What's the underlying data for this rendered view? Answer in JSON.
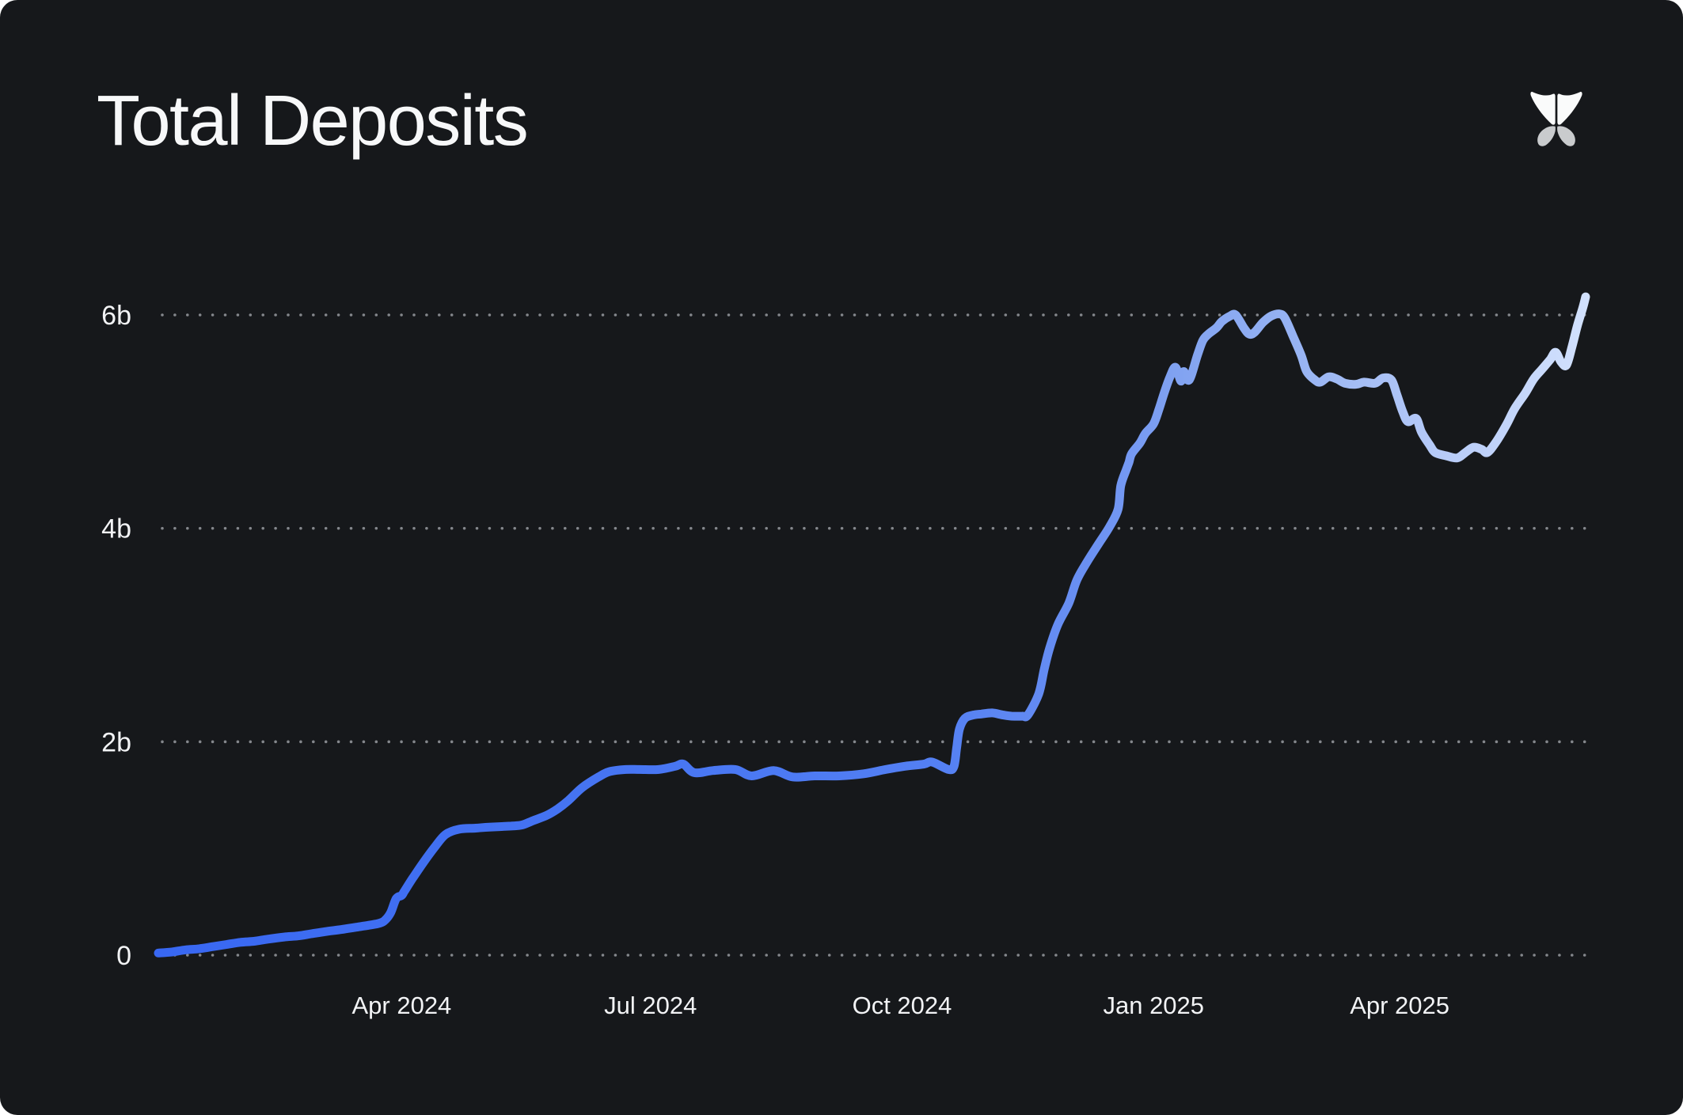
{
  "header": {
    "title": "Total Deposits",
    "logo_icon": "butterfly-logo"
  },
  "chart_data": {
    "type": "line",
    "title": "Total Deposits",
    "value_unit": "billions",
    "legend": "none",
    "grid": "horizontal-dotted",
    "x_axis": {
      "ticks": [
        {
          "date": "2024-04-01",
          "label": "Apr 2024"
        },
        {
          "date": "2024-07-01",
          "label": "Jul 2024"
        },
        {
          "date": "2024-10-01",
          "label": "Oct 2024"
        },
        {
          "date": "2025-01-01",
          "label": "Jan 2025"
        },
        {
          "date": "2025-04-01",
          "label": "Apr 2025"
        }
      ]
    },
    "y_axis": {
      "range": [
        0,
        6.5
      ],
      "ticks": [
        {
          "value": 0,
          "label": "0"
        },
        {
          "value": 2,
          "label": "2b"
        },
        {
          "value": 4,
          "label": "4b"
        },
        {
          "value": 6,
          "label": "6b"
        }
      ]
    },
    "colors": {
      "background": "#16181b",
      "text": "#f2f3f5",
      "grid_dots": "#84878c",
      "logo_upper_wings": "#fafbfb",
      "logo_lower_wings": "#c9cbcd",
      "line_gradient": [
        [
          "0%",
          "#3867f2"
        ],
        [
          "20%",
          "#4170f2"
        ],
        [
          "40%",
          "#4a78f3"
        ],
        [
          "55%",
          "#5480f3"
        ],
        [
          "65%",
          "#6a90f2"
        ],
        [
          "72%",
          "#83a4f1"
        ],
        [
          "80%",
          "#98b4f3"
        ],
        [
          "90%",
          "#b7cbf8"
        ],
        [
          "100%",
          "#d2e1fd"
        ]
      ]
    },
    "series": [
      {
        "name": "Total Deposits",
        "points": [
          [
            "2024-01-03",
            0.02
          ],
          [
            "2024-01-08",
            0.03
          ],
          [
            "2024-01-13",
            0.05
          ],
          [
            "2024-01-18",
            0.06
          ],
          [
            "2024-01-23",
            0.08
          ],
          [
            "2024-01-28",
            0.1
          ],
          [
            "2024-02-02",
            0.12
          ],
          [
            "2024-02-07",
            0.13
          ],
          [
            "2024-02-12",
            0.15
          ],
          [
            "2024-02-18",
            0.17
          ],
          [
            "2024-02-23",
            0.18
          ],
          [
            "2024-02-28",
            0.2
          ],
          [
            "2024-03-04",
            0.22
          ],
          [
            "2024-03-10",
            0.24
          ],
          [
            "2024-03-15",
            0.26
          ],
          [
            "2024-03-20",
            0.28
          ],
          [
            "2024-03-24",
            0.3
          ],
          [
            "2024-03-26",
            0.33
          ],
          [
            "2024-03-28",
            0.4
          ],
          [
            "2024-03-30",
            0.53
          ],
          [
            "2024-04-01",
            0.56
          ],
          [
            "2024-04-02",
            0.6
          ],
          [
            "2024-04-05",
            0.72
          ],
          [
            "2024-04-09",
            0.87
          ],
          [
            "2024-04-13",
            1.01
          ],
          [
            "2024-04-17",
            1.13
          ],
          [
            "2024-04-22",
            1.18
          ],
          [
            "2024-04-28",
            1.19
          ],
          [
            "2024-05-03",
            1.2
          ],
          [
            "2024-05-11",
            1.21
          ],
          [
            "2024-05-15",
            1.22
          ],
          [
            "2024-05-19",
            1.26
          ],
          [
            "2024-05-24",
            1.31
          ],
          [
            "2024-05-28",
            1.37
          ],
          [
            "2024-06-01",
            1.45
          ],
          [
            "2024-06-06",
            1.57
          ],
          [
            "2024-06-12",
            1.67
          ],
          [
            "2024-06-16",
            1.72
          ],
          [
            "2024-06-22",
            1.74
          ],
          [
            "2024-06-27",
            1.74
          ],
          [
            "2024-07-04",
            1.74
          ],
          [
            "2024-07-10",
            1.77
          ],
          [
            "2024-07-13",
            1.79
          ],
          [
            "2024-07-17",
            1.71
          ],
          [
            "2024-07-24",
            1.73
          ],
          [
            "2024-08-01",
            1.74
          ],
          [
            "2024-08-07",
            1.68
          ],
          [
            "2024-08-15",
            1.73
          ],
          [
            "2024-08-22",
            1.67
          ],
          [
            "2024-08-30",
            1.68
          ],
          [
            "2024-09-08",
            1.68
          ],
          [
            "2024-09-17",
            1.7
          ],
          [
            "2024-09-25",
            1.74
          ],
          [
            "2024-10-02",
            1.77
          ],
          [
            "2024-10-09",
            1.79
          ],
          [
            "2024-10-12",
            1.81
          ],
          [
            "2024-10-18",
            1.74
          ],
          [
            "2024-10-20",
            1.77
          ],
          [
            "2024-10-21",
            1.95
          ],
          [
            "2024-10-22",
            2.12
          ],
          [
            "2024-10-24",
            2.22
          ],
          [
            "2024-10-27",
            2.25
          ],
          [
            "2024-10-30",
            2.26
          ],
          [
            "2024-11-03",
            2.27
          ],
          [
            "2024-11-07",
            2.25
          ],
          [
            "2024-11-10",
            2.24
          ],
          [
            "2024-11-14",
            2.24
          ],
          [
            "2024-11-16",
            2.25
          ],
          [
            "2024-11-20",
            2.45
          ],
          [
            "2024-11-22",
            2.68
          ],
          [
            "2024-11-24",
            2.88
          ],
          [
            "2024-11-27",
            3.1
          ],
          [
            "2024-12-01",
            3.3
          ],
          [
            "2024-12-04",
            3.52
          ],
          [
            "2024-12-08",
            3.7
          ],
          [
            "2024-12-12",
            3.86
          ],
          [
            "2024-12-16",
            4.02
          ],
          [
            "2024-12-19",
            4.18
          ],
          [
            "2024-12-20",
            4.4
          ],
          [
            "2024-12-22",
            4.55
          ],
          [
            "2024-12-23",
            4.62
          ],
          [
            "2024-12-24",
            4.7
          ],
          [
            "2024-12-27",
            4.8
          ],
          [
            "2024-12-29",
            4.89
          ],
          [
            "2025-01-01",
            4.98
          ],
          [
            "2025-01-03",
            5.12
          ],
          [
            "2025-01-05",
            5.28
          ],
          [
            "2025-01-07",
            5.42
          ],
          [
            "2025-01-09",
            5.51
          ],
          [
            "2025-01-11",
            5.38
          ],
          [
            "2025-01-12",
            5.47
          ],
          [
            "2025-01-14",
            5.39
          ],
          [
            "2025-01-17",
            5.62
          ],
          [
            "2025-01-19",
            5.76
          ],
          [
            "2025-01-21",
            5.82
          ],
          [
            "2025-01-24",
            5.88
          ],
          [
            "2025-01-26",
            5.94
          ],
          [
            "2025-01-29",
            5.99
          ],
          [
            "2025-01-31",
            6.0
          ],
          [
            "2025-02-03",
            5.88
          ],
          [
            "2025-02-05",
            5.82
          ],
          [
            "2025-02-07",
            5.84
          ],
          [
            "2025-02-10",
            5.93
          ],
          [
            "2025-02-13",
            5.99
          ],
          [
            "2025-02-16",
            6.01
          ],
          [
            "2025-02-18",
            5.97
          ],
          [
            "2025-02-21",
            5.8
          ],
          [
            "2025-02-24",
            5.62
          ],
          [
            "2025-02-26",
            5.47
          ],
          [
            "2025-03-01",
            5.39
          ],
          [
            "2025-03-03",
            5.37
          ],
          [
            "2025-03-06",
            5.42
          ],
          [
            "2025-03-09",
            5.4
          ],
          [
            "2025-03-12",
            5.36
          ],
          [
            "2025-03-16",
            5.35
          ],
          [
            "2025-03-19",
            5.37
          ],
          [
            "2025-03-23",
            5.36
          ],
          [
            "2025-03-26",
            5.41
          ],
          [
            "2025-03-29",
            5.39
          ],
          [
            "2025-03-31",
            5.25
          ],
          [
            "2025-04-02",
            5.1
          ],
          [
            "2025-04-04",
            5.0
          ],
          [
            "2025-04-07",
            5.03
          ],
          [
            "2025-04-09",
            4.9
          ],
          [
            "2025-04-12",
            4.78
          ],
          [
            "2025-04-14",
            4.71
          ],
          [
            "2025-04-18",
            4.68
          ],
          [
            "2025-04-22",
            4.66
          ],
          [
            "2025-04-25",
            4.71
          ],
          [
            "2025-04-28",
            4.76
          ],
          [
            "2025-05-01",
            4.74
          ],
          [
            "2025-05-03",
            4.71
          ],
          [
            "2025-05-06",
            4.8
          ],
          [
            "2025-05-10",
            4.97
          ],
          [
            "2025-05-13",
            5.12
          ],
          [
            "2025-05-17",
            5.27
          ],
          [
            "2025-05-20",
            5.4
          ],
          [
            "2025-05-23",
            5.49
          ],
          [
            "2025-05-26",
            5.58
          ],
          [
            "2025-05-28",
            5.65
          ],
          [
            "2025-05-30",
            5.56
          ],
          [
            "2025-06-01",
            5.53
          ],
          [
            "2025-06-03",
            5.7
          ],
          [
            "2025-06-05",
            5.9
          ],
          [
            "2025-06-07",
            6.07
          ],
          [
            "2025-06-08",
            6.17
          ]
        ]
      }
    ]
  }
}
